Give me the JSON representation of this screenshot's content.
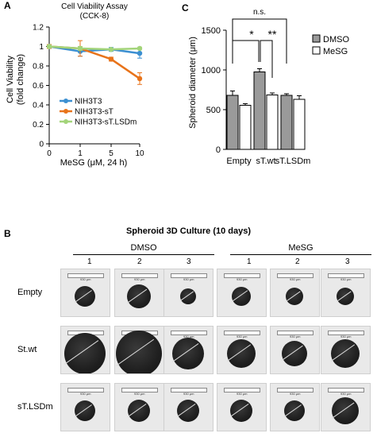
{
  "panels": {
    "a": "A",
    "b": "B",
    "c": "C"
  },
  "chart_data": [
    {
      "type": "line",
      "title": "Cell Viability Assay",
      "subtitle": "(CCK-8)",
      "xlabel": "MeSG (μM, 24 h)",
      "ylabel": "Cell Viability\n(fold change)",
      "x": [
        0,
        1,
        5,
        10
      ],
      "xticks": [
        "0",
        "1",
        "5",
        "10"
      ],
      "yticks": [
        "0",
        "0.2",
        "0.4",
        "0.6",
        "0.8",
        "1",
        "1.2"
      ],
      "ylim": [
        0,
        1.2
      ],
      "series": [
        {
          "name": "NIH3T3",
          "values": [
            1.0,
            0.95,
            0.97,
            0.93
          ],
          "errors": [
            0.02,
            0.05,
            0.02,
            0.05
          ],
          "color": "#3b8fd1"
        },
        {
          "name": "NIH3T3-sT",
          "values": [
            1.0,
            0.98,
            0.87,
            0.67
          ],
          "errors": [
            0.02,
            0.08,
            0.02,
            0.06
          ],
          "color": "#e8731a"
        },
        {
          "name": "NIH3T3-sT.LSDm",
          "values": [
            1.0,
            0.98,
            0.97,
            0.98
          ],
          "errors": [
            0.01,
            0.02,
            0.01,
            0.01
          ],
          "color": "#a3d47a"
        }
      ]
    },
    {
      "type": "bar",
      "categories": [
        "Empty",
        "sT.wt",
        "sT.LSDm"
      ],
      "ylabel": "Spheroid diameter (μm)",
      "yticks": [
        "0",
        "500",
        "1000",
        "1500"
      ],
      "ylim": [
        0,
        1500
      ],
      "series": [
        {
          "name": "DMSO",
          "values": [
            680,
            975,
            680
          ],
          "errors": [
            55,
            40,
            20
          ],
          "color": "#9a9a9a"
        },
        {
          "name": "MeSG",
          "values": [
            555,
            685,
            630
          ],
          "errors": [
            20,
            25,
            45
          ],
          "color": "#ffffff"
        }
      ],
      "annotations": {
        "ns": "n.s.",
        "star1": "*",
        "star2": "**"
      }
    }
  ],
  "culture": {
    "title": "Spheroid 3D Culture (10 days)",
    "groups": [
      "DMSO",
      "MeSG"
    ],
    "columns": [
      "1",
      "2",
      "3"
    ],
    "rows": [
      "Empty",
      "St.wt",
      "sT.LSDm"
    ],
    "scale_label": "930 μm"
  }
}
